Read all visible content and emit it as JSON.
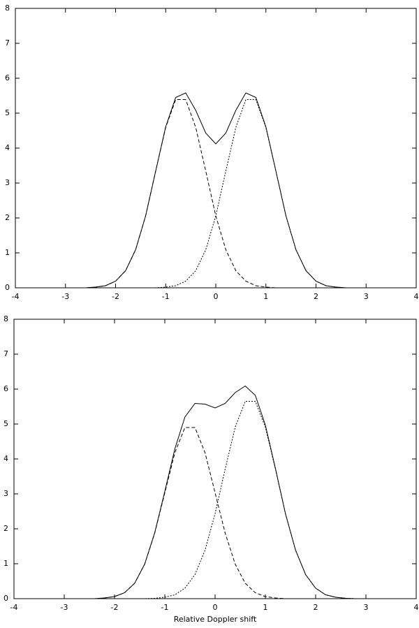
{
  "chart_data": [
    {
      "type": "line",
      "xlim": [
        -4,
        4
      ],
      "ylim": [
        0,
        8
      ],
      "xticks": [
        -4,
        -3,
        -2,
        -1,
        0,
        1,
        2,
        3,
        4
      ],
      "yticks": [
        0,
        1,
        2,
        3,
        4,
        5,
        6,
        7,
        8
      ],
      "x": [
        -4,
        -3.8,
        -3.6,
        -3.4,
        -3.2,
        -3,
        -2.8,
        -2.6,
        -2.4,
        -2.2,
        -2,
        -1.8,
        -1.6,
        -1.4,
        -1.2,
        -1,
        -0.8,
        -0.6,
        -0.4,
        -0.2,
        0,
        0.2,
        0.4,
        0.6,
        0.8,
        1,
        1.2,
        1.4,
        1.6,
        1.8,
        2,
        2.2,
        2.4,
        2.6,
        2.8,
        3,
        3.2,
        3.4,
        3.6,
        3.8,
        4
      ],
      "series": [
        {
          "color": "#000000",
          "style": "solid",
          "values": [
            0,
            0,
            0,
            0,
            0,
            0,
            0,
            0,
            0.02,
            0.06,
            0.19,
            0.49,
            1.09,
            2.06,
            3.34,
            4.61,
            5.45,
            5.58,
            5.08,
            4.43,
            4.12,
            4.43,
            5.08,
            5.58,
            5.45,
            4.61,
            3.34,
            2.06,
            1.09,
            0.49,
            0.19,
            0.06,
            0.02,
            0,
            0,
            0,
            0,
            0,
            0,
            0,
            0
          ]
        },
        {
          "color": "#000000",
          "style": "dashed",
          "values": [
            0,
            0,
            0,
            0,
            0,
            0,
            0,
            0,
            0.02,
            0.06,
            0.19,
            0.49,
            1.09,
            2.06,
            3.34,
            4.59,
            5.39,
            5.39,
            4.59,
            3.34,
            2.06,
            1.09,
            0.49,
            0.19,
            0.06,
            0.02,
            0,
            0,
            0,
            0,
            0,
            0,
            0,
            0,
            0,
            0,
            0,
            0,
            0,
            0,
            0
          ]
        },
        {
          "color": "#000000",
          "style": "dotted",
          "values": [
            0,
            0,
            0,
            0,
            0,
            0,
            0,
            0,
            0,
            0,
            0,
            0,
            0,
            0,
            0,
            0.02,
            0.06,
            0.19,
            0.49,
            1.09,
            2.06,
            3.34,
            4.59,
            5.39,
            5.39,
            4.59,
            3.34,
            2.06,
            1.09,
            0.49,
            0.19,
            0.06,
            0.02,
            0,
            0,
            0,
            0,
            0,
            0,
            0,
            0
          ]
        }
      ]
    },
    {
      "type": "line",
      "xlim": [
        -4,
        4
      ],
      "ylim": [
        0,
        8
      ],
      "xlabel": "Relative Doppler shift",
      "xticks": [
        -4,
        -3,
        -2,
        -1,
        0,
        1,
        2,
        3,
        4
      ],
      "yticks": [
        0,
        1,
        2,
        3,
        4,
        5,
        6,
        7,
        8
      ],
      "x": [
        -4,
        -3.8,
        -3.6,
        -3.4,
        -3.2,
        -3,
        -2.8,
        -2.6,
        -2.4,
        -2.2,
        -2,
        -1.8,
        -1.6,
        -1.4,
        -1.2,
        -1,
        -0.8,
        -0.6,
        -0.4,
        -0.2,
        0,
        0.2,
        0.4,
        0.6,
        0.8,
        1,
        1.2,
        1.4,
        1.6,
        1.8,
        2,
        2.2,
        2.4,
        2.6,
        2.8,
        3,
        3.2,
        3.4,
        3.6,
        3.8,
        4
      ],
      "series": [
        {
          "color": "#000000",
          "style": "solid",
          "values": [
            0,
            0,
            0,
            0,
            0,
            0,
            0,
            0,
            0,
            0.02,
            0.06,
            0.17,
            0.44,
            0.99,
            1.89,
            3.07,
            4.29,
            5.2,
            5.59,
            5.57,
            5.46,
            5.59,
            5.9,
            6.09,
            5.82,
            4.97,
            3.73,
            2.43,
            1.39,
            0.69,
            0.3,
            0.11,
            0.04,
            0.01,
            0,
            0,
            0,
            0,
            0,
            0,
            0
          ]
        },
        {
          "color": "#000000",
          "style": "dashed",
          "values": [
            0,
            0,
            0,
            0,
            0,
            0,
            0,
            0,
            0,
            0.02,
            0.06,
            0.17,
            0.44,
            0.99,
            1.88,
            3.03,
            4.18,
            4.9,
            4.9,
            4.18,
            3.03,
            1.88,
            0.99,
            0.44,
            0.17,
            0.06,
            0.02,
            0,
            0,
            0,
            0,
            0,
            0,
            0,
            0,
            0,
            0,
            0,
            0,
            0,
            0
          ]
        },
        {
          "color": "#000000",
          "style": "dotted",
          "values": [
            0,
            0,
            0,
            0,
            0,
            0,
            0,
            0,
            0,
            0,
            0,
            0,
            0,
            0,
            0.01,
            0.04,
            0.11,
            0.3,
            0.69,
            1.39,
            2.43,
            3.71,
            4.91,
            5.65,
            5.65,
            4.91,
            3.71,
            2.43,
            1.39,
            0.69,
            0.3,
            0.11,
            0.04,
            0.01,
            0,
            0,
            0,
            0,
            0,
            0,
            0
          ]
        }
      ]
    }
  ]
}
